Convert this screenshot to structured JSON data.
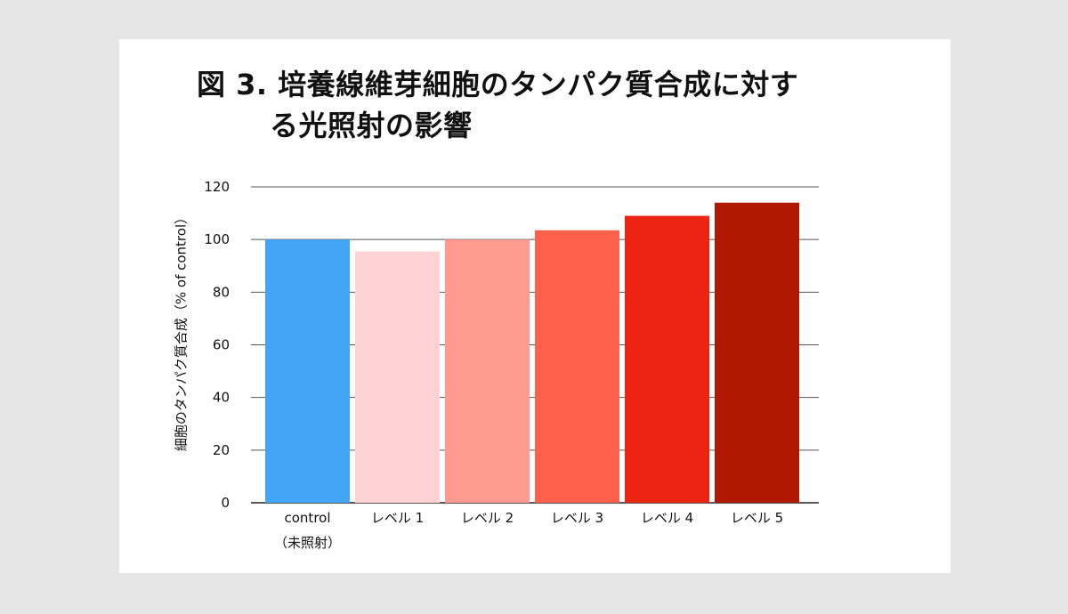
{
  "chart_data": {
    "type": "bar",
    "title": [
      "図 3. 培養線維芽細胞のタンパク質合成に対す",
      "る光照射の影響"
    ],
    "ylabel": "細胞のタンパク質合成（% of control）",
    "xlabel": "",
    "categories": [
      "control",
      "レベル 1",
      "レベル 2",
      "レベル 3",
      "レベル 4",
      "レベル 5"
    ],
    "category_sublabels": [
      "（未照射）",
      "",
      "",
      "",
      "",
      ""
    ],
    "values": [
      100,
      95.5,
      100,
      103.5,
      109,
      114
    ],
    "colors": [
      "#42a5f5",
      "#ffd3d3",
      "#ff9a90",
      "#ff604c",
      "#ee2412",
      "#b01800"
    ],
    "ylim": [
      0,
      120
    ],
    "yticks": [
      0,
      20,
      40,
      60,
      80,
      100,
      120
    ],
    "grid": true,
    "legend": "none"
  }
}
